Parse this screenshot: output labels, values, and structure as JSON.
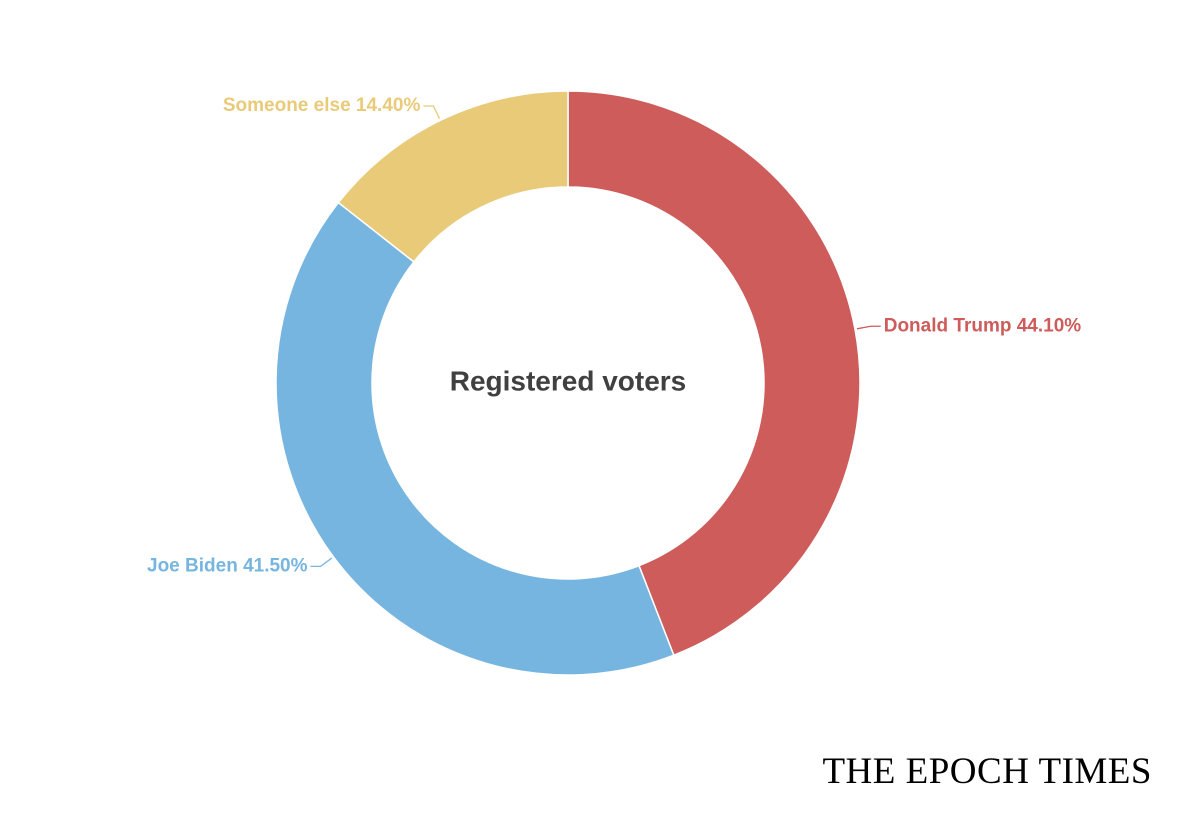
{
  "chart_data": {
    "type": "pie",
    "variant": "donut",
    "center_label": "Registered voters",
    "slices": [
      {
        "label": "Donald Trump",
        "value": 44.1,
        "display": "Donald Trump 44.10%",
        "color": "#cd5c5a"
      },
      {
        "label": "Joe Biden",
        "value": 41.5,
        "display": "Joe Biden 41.50%",
        "color": "#76b5e0"
      },
      {
        "label": "Someone else",
        "value": 14.4,
        "display": "Someone else 14.40%",
        "color": "#e8ca78"
      }
    ],
    "start": "12 o'clock",
    "direction": "clockwise",
    "legend": "none (labels beside slices)"
  },
  "branding": {
    "publisher": "THE EPOCH TIMES"
  }
}
